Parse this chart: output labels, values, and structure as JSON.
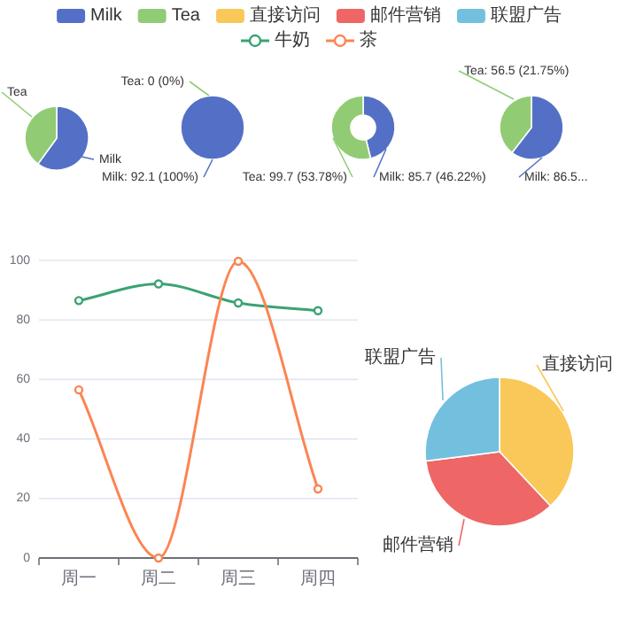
{
  "chart_data": [
    {
      "type": "pie",
      "categories": [
        "Milk",
        "Tea"
      ],
      "values": [
        60,
        40
      ],
      "colors": [
        "#5470c6",
        "#91cc75"
      ],
      "legend": "top"
    },
    {
      "type": "pie",
      "categories": [
        "Milk",
        "Tea"
      ],
      "values": [
        92.1,
        0
      ],
      "colors": [
        "#5470c6",
        "#91cc75"
      ],
      "value_labels": [
        "92.1 (100%)",
        "0 (0%)"
      ]
    },
    {
      "type": "donut",
      "categories": [
        "Milk",
        "Tea"
      ],
      "values": [
        85.7,
        99.7
      ],
      "colors": [
        "#5470c6",
        "#91cc75"
      ],
      "value_labels": [
        "85.7 (46.22%)",
        "99.7 (53.78%)"
      ]
    },
    {
      "type": "pie",
      "categories": [
        "Milk",
        "Tea"
      ],
      "values": [
        86.5,
        56.5
      ],
      "colors": [
        "#5470c6",
        "#91cc75"
      ],
      "value_labels": [
        "86.5...",
        "56.5 (21.75%)"
      ]
    },
    {
      "type": "line",
      "categories": [
        "周一",
        "周二",
        "周三",
        "周四"
      ],
      "series": [
        {
          "name": "牛奶",
          "color": "#3ba272",
          "values": [
            86.5,
            92.1,
            85.7,
            83.1
          ]
        },
        {
          "name": "茶",
          "color": "#fc8452",
          "values": [
            56.5,
            0,
            99.7,
            23.2
          ]
        }
      ],
      "ylim": [
        0,
        100
      ],
      "yticks": [
        0,
        20,
        40,
        60,
        80,
        100
      ],
      "grid": "y",
      "marker": "circle",
      "legend": "top"
    },
    {
      "type": "pie",
      "categories": [
        "直接访问",
        "邮件营销",
        "联盟广告"
      ],
      "values": [
        38,
        35,
        27
      ],
      "colors": [
        "#fac858",
        "#ee6666",
        "#73c0de"
      ],
      "legend": "top"
    }
  ]
}
